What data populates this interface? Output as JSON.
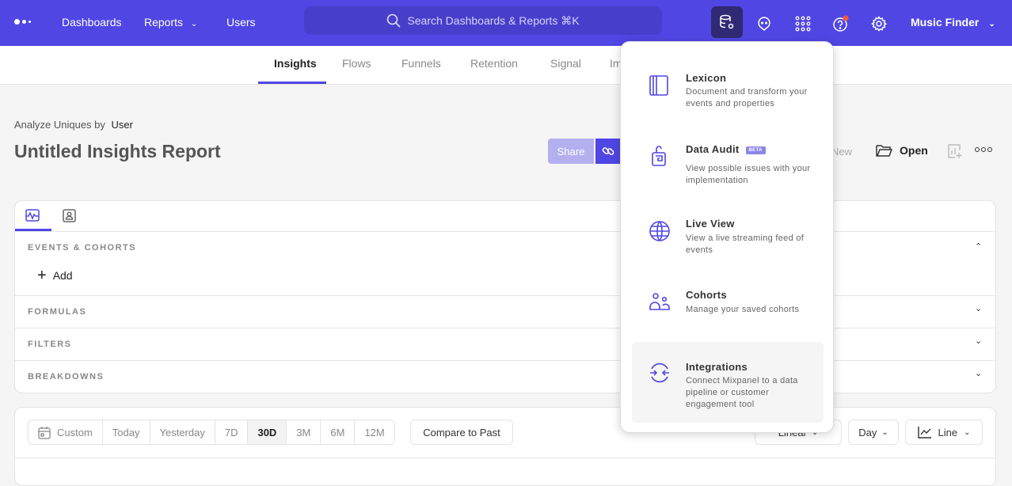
{
  "topbar": {
    "nav": [
      "Dashboards",
      "Reports",
      "Users"
    ],
    "search_placeholder": "Search Dashboards & Reports ⌘K",
    "project": "Music Finder",
    "icons": [
      "data-management-icon",
      "chat-icon",
      "apps-grid-icon",
      "help-icon",
      "settings-icon"
    ],
    "accent": "#5046e4",
    "notification_color": "#ef5a3c"
  },
  "subnav": {
    "tabs": [
      "Insights",
      "Flows",
      "Funnels",
      "Retention",
      "Signal",
      "Impact"
    ],
    "active": "Insights"
  },
  "report": {
    "analyze_label": "Analyze Uniques by",
    "analyze_value": "User",
    "title": "Untitled Insights Report",
    "share": "Share",
    "new": "New",
    "open": "Open"
  },
  "query": {
    "sections": [
      "EVENTS & COHORTS",
      "FORMULAS",
      "FILTERS",
      "BREAKDOWNS"
    ],
    "add": "Add"
  },
  "controls": {
    "ranges": [
      "Custom",
      "Today",
      "Yesterday",
      "7D",
      "30D",
      "3M",
      "6M",
      "12M"
    ],
    "selected_range": "30D",
    "compare": "Compare to Past",
    "scale": "Linear",
    "interval": "Day",
    "chart_type": "Line"
  },
  "menu": {
    "items": [
      {
        "title": "Lexicon",
        "desc": "Document and transform your events and properties",
        "icon": "book-icon"
      },
      {
        "title": "Data Audit",
        "badge": "BETA",
        "desc": "View possible issues with your implementation",
        "icon": "lock-audit-icon"
      },
      {
        "title": "Live View",
        "desc": "View a live streaming feed of events",
        "icon": "globe-icon"
      },
      {
        "title": "Cohorts",
        "desc": "Manage your saved cohorts",
        "icon": "users-icon"
      },
      {
        "title": "Integrations",
        "desc": "Connect Mixpanel to a data pipeline or customer engagement tool",
        "icon": "integrations-icon"
      }
    ],
    "highlighted": "Integrations"
  }
}
